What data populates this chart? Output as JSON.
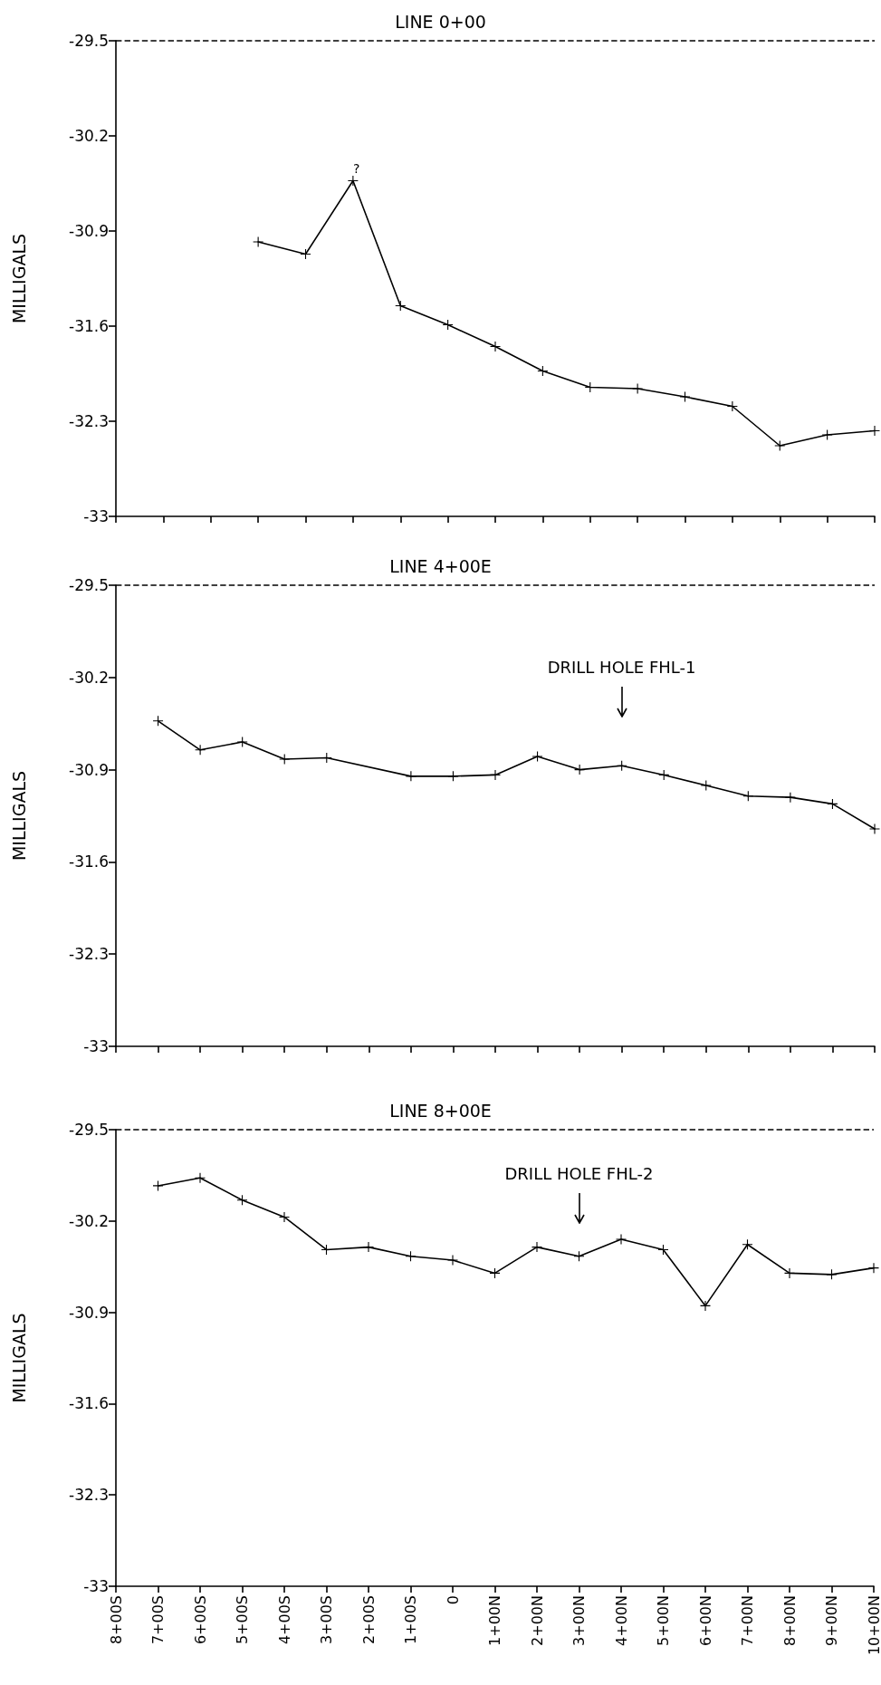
{
  "chart_data": [
    {
      "type": "line",
      "title": "LINE 0+00",
      "ylabel": "MILLIGALS",
      "categories": [
        null,
        null,
        null,
        null,
        null,
        null,
        null,
        null,
        null,
        null,
        null,
        null,
        null,
        null,
        null,
        null,
        null
      ],
      "series": [
        {
          "color": "#000000",
          "values": [
            null,
            null,
            null,
            -30.98,
            -31.07,
            -30.53,
            -31.45,
            -31.59,
            -31.75,
            -31.93,
            -32.05,
            -32.06,
            -32.12,
            -32.19,
            -32.48,
            -32.4,
            -32.37
          ]
        }
      ],
      "ylim": [
        -33,
        -29.5
      ],
      "yticks": [
        -33,
        -32.3,
        -31.6,
        -30.9,
        -30.2,
        -29.5
      ],
      "ref_lines": [
        {
          "axis": "y",
          "value": -29.5,
          "line_style": "dashed",
          "color": "#000000"
        }
      ],
      "annotations": [
        "?"
      ],
      "marker": "cross",
      "line_style": "solid",
      "grid": false
    },
    {
      "type": "line",
      "title": "LINE 4+00E",
      "ylabel": "MILLIGALS",
      "categories": [
        null,
        null,
        null,
        null,
        null,
        null,
        null,
        null,
        null,
        null,
        null,
        null,
        null,
        null,
        null,
        null,
        null,
        null,
        null
      ],
      "series": [
        {
          "color": "#000000",
          "values": [
            null,
            -30.53,
            -30.75,
            -30.69,
            -30.82,
            -30.81,
            null,
            -30.95,
            -30.95,
            -30.94,
            -30.8,
            -30.9,
            -30.87,
            -30.94,
            -31.02,
            -31.1,
            -31.11,
            -31.16,
            -31.35
          ]
        }
      ],
      "ylim": [
        -33,
        -29.5
      ],
      "yticks": [
        -33,
        -32.3,
        -31.6,
        -30.9,
        -30.2,
        -29.5
      ],
      "ref_lines": [
        {
          "axis": "y",
          "value": -29.5,
          "line_style": "dashed",
          "color": "#000000"
        }
      ],
      "annotations": [
        "DRILL HOLE FHL-1"
      ],
      "marker": "cross",
      "line_style": "solid",
      "grid": false
    },
    {
      "type": "line",
      "title": "LINE 8+00E",
      "ylabel": "MILLIGALS",
      "categories": [
        "8+00S",
        "7+00S",
        "6+00S",
        "5+00S",
        "4+00S",
        "3+00S",
        "2+00S",
        "1+00S",
        "0",
        "1+00N",
        "2+00N",
        "3+00N",
        "4+00N",
        "5+00N",
        "6+00N",
        "7+00N",
        "8+00N",
        "9+00N",
        "10+00N"
      ],
      "series": [
        {
          "color": "#000000",
          "values": [
            null,
            -29.93,
            -29.87,
            -30.04,
            -30.17,
            -30.42,
            -30.4,
            -30.47,
            -30.5,
            -30.6,
            -30.4,
            -30.47,
            -30.34,
            -30.42,
            -30.85,
            -30.38,
            -30.6,
            -30.61,
            -30.56
          ]
        }
      ],
      "ylim": [
        -33,
        -29.5
      ],
      "yticks": [
        -33,
        -32.3,
        -31.6,
        -30.9,
        -30.2,
        -29.5
      ],
      "ref_lines": [
        {
          "axis": "y",
          "value": -29.5,
          "line_style": "dashed",
          "color": "#000000"
        }
      ],
      "annotations": [
        "DRILL HOLE FHL-2"
      ],
      "marker": "cross",
      "line_style": "solid",
      "grid": false
    }
  ]
}
